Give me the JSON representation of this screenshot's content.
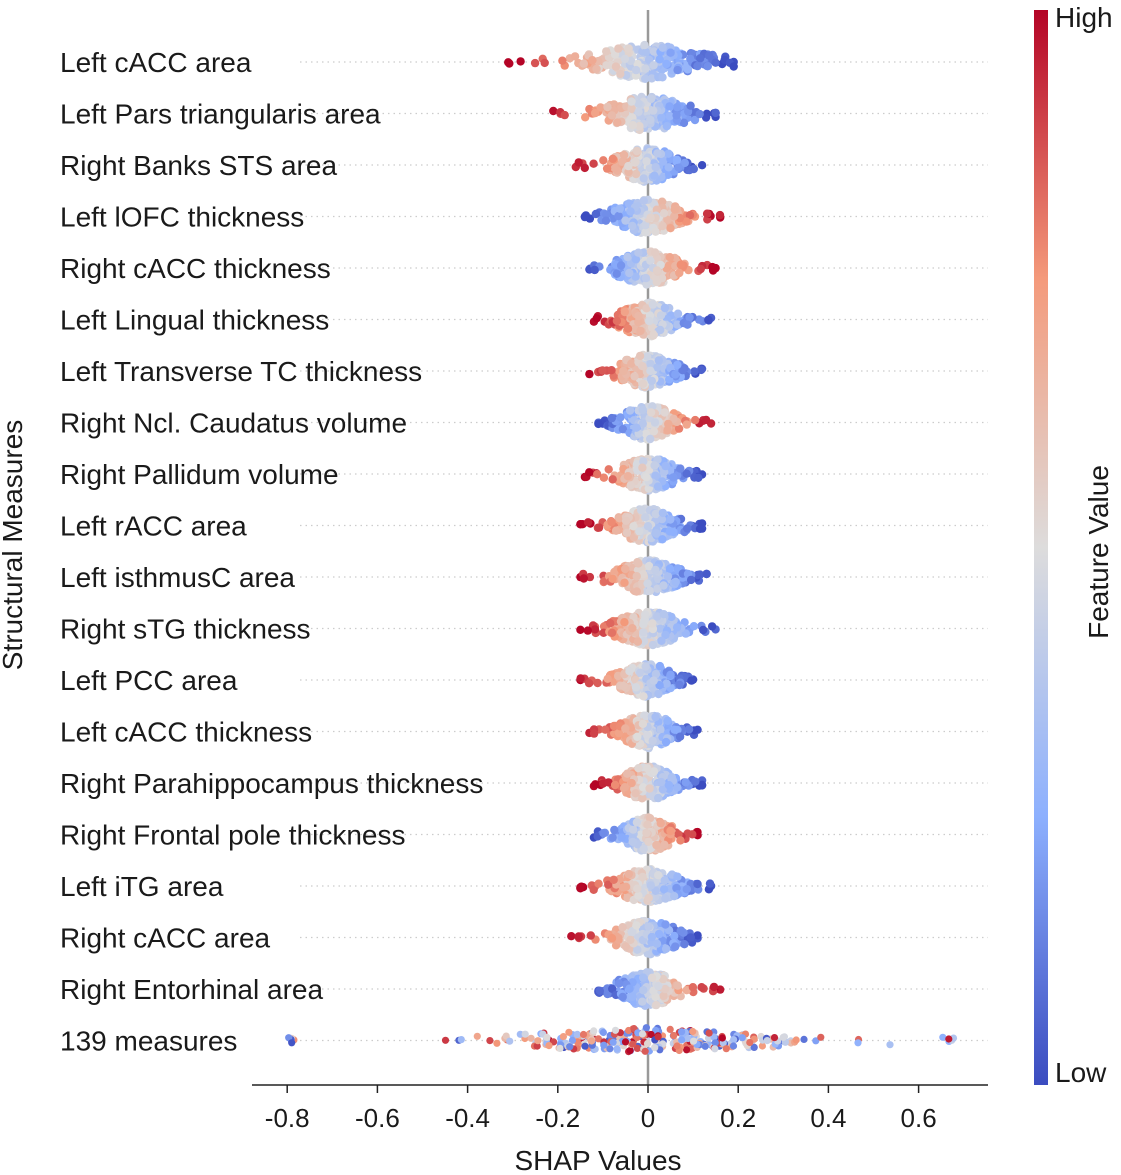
{
  "chart_data": {
    "type": "scatter",
    "subtype": "shap-beeswarm",
    "title": "",
    "xlabel": "SHAP Values",
    "ylabel": "Structural Measures",
    "xlim": [
      -0.88,
      0.75
    ],
    "xticks": [
      -0.8,
      -0.6,
      -0.4,
      -0.2,
      0,
      0.2,
      0.4,
      0.6
    ],
    "xtick_labels": [
      "-0.8",
      "-0.6",
      "-0.4",
      "-0.2",
      "0",
      "0.2",
      "0.4",
      "0.6"
    ],
    "grid": false,
    "features": [
      {
        "name": "Left cACC area",
        "min": -0.31,
        "max": 0.19,
        "trend": -1
      },
      {
        "name": "Left Pars triangularis area",
        "min": -0.21,
        "max": 0.15,
        "trend": -1
      },
      {
        "name": "Right Banks STS area",
        "min": -0.16,
        "max": 0.12,
        "trend": -1
      },
      {
        "name": "Left lOFC thickness",
        "min": -0.14,
        "max": 0.16,
        "trend": 1
      },
      {
        "name": "Right cACC thickness",
        "min": -0.13,
        "max": 0.15,
        "trend": 1
      },
      {
        "name": "Left Lingual thickness",
        "min": -0.12,
        "max": 0.14,
        "trend": -1
      },
      {
        "name": "Left Transverse TC thickness",
        "min": -0.13,
        "max": 0.12,
        "trend": -1
      },
      {
        "name": "Right Ncl. Caudatus volume",
        "min": -0.11,
        "max": 0.14,
        "trend": 1
      },
      {
        "name": "Right Pallidum volume",
        "min": -0.14,
        "max": 0.12,
        "trend": -1
      },
      {
        "name": "Left rACC area",
        "min": -0.15,
        "max": 0.12,
        "trend": -1
      },
      {
        "name": "Left isthmusC area",
        "min": -0.15,
        "max": 0.13,
        "trend": -1
      },
      {
        "name": "Right sTG thickness",
        "min": -0.15,
        "max": 0.15,
        "trend": -1
      },
      {
        "name": "Left PCC area",
        "min": -0.15,
        "max": 0.1,
        "trend": -1
      },
      {
        "name": "Left cACC thickness",
        "min": -0.13,
        "max": 0.11,
        "trend": -1
      },
      {
        "name": "Right Parahippocampus thickness",
        "min": -0.12,
        "max": 0.12,
        "trend": -1
      },
      {
        "name": "Right Frontal pole thickness",
        "min": -0.12,
        "max": 0.11,
        "trend": 1
      },
      {
        "name": "Left iTG area",
        "min": -0.15,
        "max": 0.14,
        "trend": -1
      },
      {
        "name": "Right cACC area",
        "min": -0.17,
        "max": 0.11,
        "trend": -1
      },
      {
        "name": "Right Entorhinal area",
        "min": -0.11,
        "max": 0.16,
        "trend": 1
      },
      {
        "name": "139 measures",
        "min": -0.8,
        "max": 0.68,
        "trend": 0
      }
    ],
    "colorbar": {
      "title": "Feature Value",
      "high_label": "High",
      "low_label": "Low",
      "colormap": "coolwarm",
      "colors": {
        "low": "#3b4cc0",
        "mid": "#dddcdc",
        "high": "#b40426"
      }
    }
  }
}
